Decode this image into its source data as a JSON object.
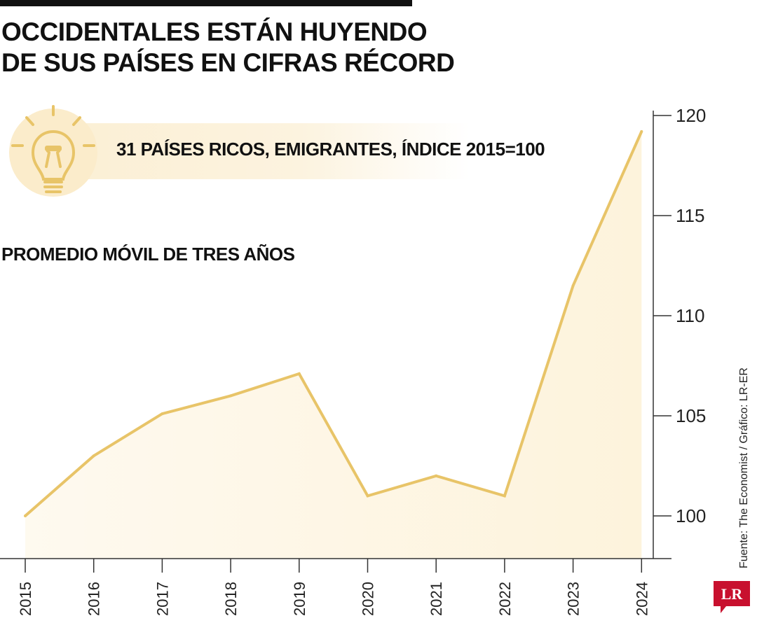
{
  "title_lines": [
    "OCCIDENTALES ESTÁN HUYENDO",
    "DE SUS PAÍSES EN CIFRAS RÉCORD"
  ],
  "subtitle": "31 PAÍSES RICOS, EMIGRANTES, ÍNDICE 2015=100",
  "note": "PROMEDIO MÓVIL DE TRES AÑOS",
  "source": "Fuente: The Economist / Gráfico: LR-ER",
  "logo_text": "LR",
  "colors": {
    "line": "#e8c468",
    "area": "#fdf3dc",
    "logo": "#c8102e",
    "bulb_circle": "#fbeccb",
    "bulb_stroke": "#e8c468"
  },
  "icons": [
    "lightbulb-icon"
  ],
  "chart_data": {
    "type": "area",
    "x": [
      "2015",
      "2016",
      "2017",
      "2018",
      "2019",
      "2020",
      "2021",
      "2022",
      "2023",
      "2024"
    ],
    "series": [
      {
        "values": [
          100,
          103,
          105.1,
          106,
          107.1,
          101,
          102,
          101,
          111.5,
          119.2
        ]
      }
    ],
    "ylim": [
      98,
      120
    ],
    "yticks": [
      100,
      105,
      110,
      115,
      120
    ],
    "y_axis_side": "right",
    "grid": false,
    "legend": "none"
  }
}
